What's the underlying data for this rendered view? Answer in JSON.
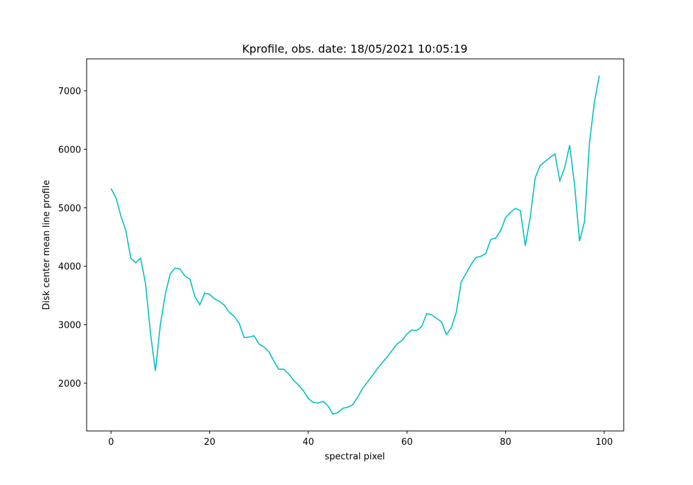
{
  "chart_data": {
    "type": "line",
    "title": "Kprofile, obs. date: 18/05/2021 10:05:19",
    "xlabel": "spectral pixel",
    "ylabel": "Disk center mean line profile",
    "x": [
      0,
      1,
      2,
      3,
      4,
      5,
      6,
      7,
      8,
      9,
      10,
      11,
      12,
      13,
      14,
      15,
      16,
      17,
      18,
      19,
      20,
      21,
      22,
      23,
      24,
      25,
      26,
      27,
      28,
      29,
      30,
      31,
      32,
      33,
      34,
      35,
      36,
      37,
      38,
      39,
      40,
      41,
      42,
      43,
      44,
      45,
      46,
      47,
      48,
      49,
      50,
      51,
      52,
      53,
      54,
      55,
      56,
      57,
      58,
      59,
      60,
      61,
      62,
      63,
      64,
      65,
      66,
      67,
      68,
      69,
      70,
      71,
      72,
      73,
      74,
      75,
      76,
      77,
      78,
      79,
      80,
      81,
      82,
      83,
      84,
      85,
      86,
      87,
      88,
      89,
      90,
      91,
      92,
      93,
      94,
      95,
      96,
      97,
      98,
      99
    ],
    "series": [
      {
        "name": null,
        "color": "#00bfbf",
        "values": [
          5330,
          5170,
          4860,
          4610,
          4140,
          4060,
          4140,
          3700,
          2850,
          2210,
          3000,
          3520,
          3870,
          3970,
          3950,
          3830,
          3780,
          3480,
          3340,
          3540,
          3520,
          3440,
          3400,
          3330,
          3210,
          3140,
          3020,
          2780,
          2790,
          2810,
          2670,
          2620,
          2540,
          2380,
          2240,
          2240,
          2160,
          2050,
          1970,
          1870,
          1740,
          1670,
          1660,
          1690,
          1610,
          1470,
          1500,
          1570,
          1590,
          1630,
          1760,
          1910,
          2020,
          2130,
          2250,
          2350,
          2450,
          2560,
          2670,
          2730,
          2840,
          2910,
          2900,
          2970,
          3190,
          3170,
          3110,
          3050,
          2830,
          2950,
          3210,
          3730,
          3880,
          4030,
          4150,
          4170,
          4220,
          4460,
          4480,
          4610,
          4830,
          4920,
          4990,
          4950,
          4350,
          4840,
          5510,
          5720,
          5790,
          5860,
          5920,
          5460,
          5690,
          6070,
          5380,
          4430,
          4760,
          6100,
          6800,
          7260
        ]
      }
    ],
    "xlim": [
      -4.95,
      103.95
    ],
    "xticks": [
      0,
      20,
      40,
      60,
      80,
      100
    ],
    "ylim": [
      1183,
      7545
    ],
    "yticks": [
      2000,
      3000,
      4000,
      5000,
      6000,
      7000
    ],
    "grid": false
  }
}
